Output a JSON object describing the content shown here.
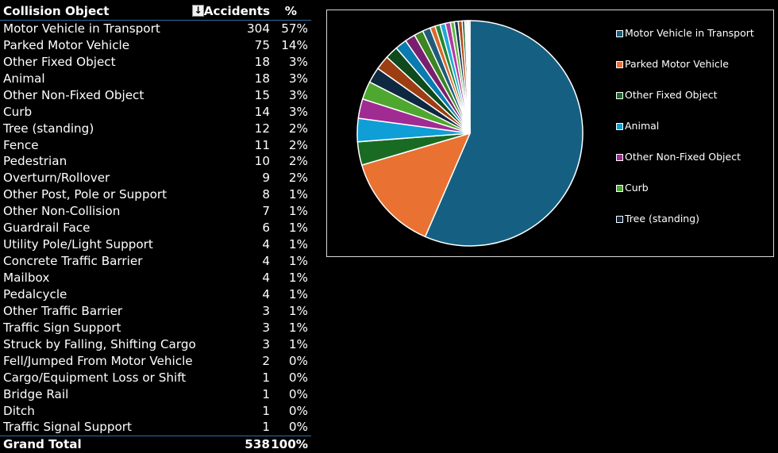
{
  "table": {
    "headers": {
      "name": "Collision Object",
      "accidents": "Accidents",
      "pct": "%"
    },
    "sort_icon": "sort-descending-icon",
    "rows": [
      {
        "name": "Motor Vehicle in Transport",
        "accidents": "304",
        "pct": "57%"
      },
      {
        "name": "Parked Motor Vehicle",
        "accidents": "75",
        "pct": "14%"
      },
      {
        "name": "Other Fixed Object",
        "accidents": "18",
        "pct": "3%"
      },
      {
        "name": "Animal",
        "accidents": "18",
        "pct": "3%"
      },
      {
        "name": "Other Non-Fixed Object",
        "accidents": "15",
        "pct": "3%"
      },
      {
        "name": "Curb",
        "accidents": "14",
        "pct": "3%"
      },
      {
        "name": "Tree (standing)",
        "accidents": "12",
        "pct": "2%"
      },
      {
        "name": "Fence",
        "accidents": "11",
        "pct": "2%"
      },
      {
        "name": "Pedestrian",
        "accidents": "10",
        "pct": "2%"
      },
      {
        "name": "Overturn/Rollover",
        "accidents": "9",
        "pct": "2%"
      },
      {
        "name": "Other Post, Pole or Support",
        "accidents": "8",
        "pct": "1%"
      },
      {
        "name": "Other Non-Collision",
        "accidents": "7",
        "pct": "1%"
      },
      {
        "name": "Guardrail Face",
        "accidents": "6",
        "pct": "1%"
      },
      {
        "name": "Utility Pole/Light Support",
        "accidents": "4",
        "pct": "1%"
      },
      {
        "name": "Concrete Traffic Barrier",
        "accidents": "4",
        "pct": "1%"
      },
      {
        "name": "Mailbox",
        "accidents": "4",
        "pct": "1%"
      },
      {
        "name": "Pedalcycle",
        "accidents": "4",
        "pct": "1%"
      },
      {
        "name": "Other Traffic Barrier",
        "accidents": "3",
        "pct": "1%"
      },
      {
        "name": "Traffic Sign Support",
        "accidents": "3",
        "pct": "1%"
      },
      {
        "name": "Struck by Falling, Shifting Cargo",
        "accidents": "3",
        "pct": "1%"
      },
      {
        "name": "Fell/Jumped From Motor Vehicle",
        "accidents": "2",
        "pct": "0%"
      },
      {
        "name": "Cargo/Equipment Loss or Shift",
        "accidents": "1",
        "pct": "0%"
      },
      {
        "name": "Bridge Rail",
        "accidents": "1",
        "pct": "0%"
      },
      {
        "name": "Ditch",
        "accidents": "1",
        "pct": "0%"
      },
      {
        "name": "Traffic Signal Support",
        "accidents": "1",
        "pct": "0%"
      }
    ],
    "total": {
      "name": "Grand Total",
      "accidents": "538",
      "pct": "100%"
    }
  },
  "chart_data": {
    "type": "pie",
    "categories": [
      "Motor Vehicle in Transport",
      "Parked Motor Vehicle",
      "Other Fixed Object",
      "Animal",
      "Other Non-Fixed Object",
      "Curb",
      "Tree (standing)",
      "Fence",
      "Pedestrian",
      "Overturn/Rollover",
      "Other Post, Pole or Support",
      "Other Non-Collision",
      "Guardrail Face",
      "Utility Pole/Light Support",
      "Concrete Traffic Barrier",
      "Mailbox",
      "Pedalcycle",
      "Other Traffic Barrier",
      "Traffic Sign Support",
      "Struck by Falling, Shifting Cargo",
      "Fell/Jumped From Motor Vehicle",
      "Cargo/Equipment Loss or Shift",
      "Bridge Rail",
      "Ditch",
      "Traffic Signal Support"
    ],
    "values": [
      304,
      75,
      18,
      18,
      15,
      14,
      12,
      11,
      10,
      9,
      8,
      7,
      6,
      4,
      4,
      4,
      4,
      3,
      3,
      3,
      2,
      1,
      1,
      1,
      1
    ],
    "colors": [
      "#156082",
      "#e97132",
      "#196b24",
      "#0f9ed5",
      "#a02b93",
      "#4ea72e",
      "#0e2841",
      "#9c3d12",
      "#0e4a1b",
      "#0a7bb0",
      "#7a1f70",
      "#3c8522",
      "#1f5c7a",
      "#d9692e",
      "#23872e",
      "#22a7dc",
      "#b33aa3",
      "#5fb83e",
      "#163857",
      "#b04a18",
      "#155d24",
      "#14a0d6",
      "#8e2a84",
      "#47a02a",
      "#275f85"
    ],
    "legend": [
      "Motor Vehicle in Transport",
      "Parked Motor Vehicle",
      "Other Fixed Object",
      "Animal",
      "Other Non-Fixed Object",
      "Curb",
      "Tree (standing)"
    ],
    "legend_position": "right",
    "title": ""
  }
}
